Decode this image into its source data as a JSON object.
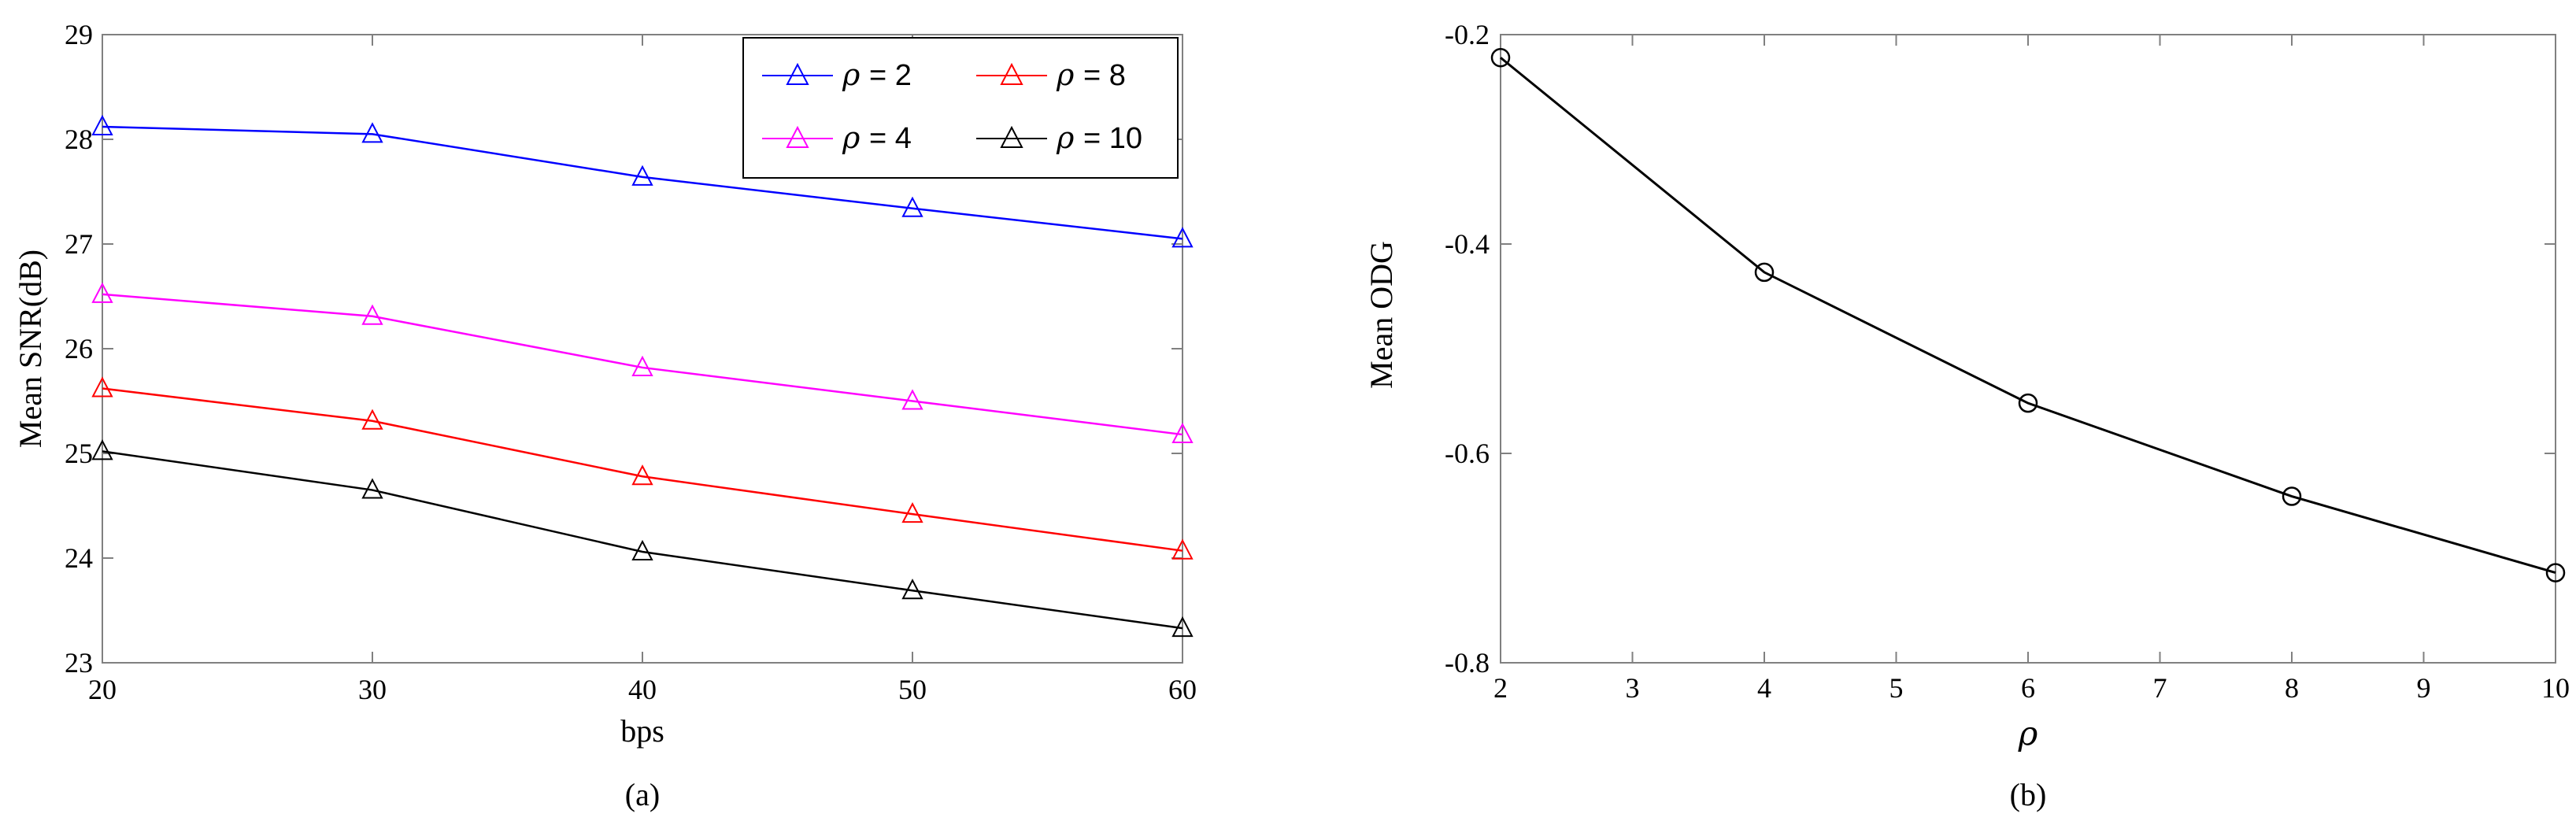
{
  "chart_data": [
    {
      "type": "line",
      "caption": "(a)",
      "xlabel": "bps",
      "ylabel": "Mean SNR(dB)",
      "xlim": [
        20,
        60
      ],
      "ylim": [
        23,
        29
      ],
      "xticks": [
        "20",
        "30",
        "40",
        "50",
        "60"
      ],
      "yticks": [
        "23",
        "24",
        "25",
        "26",
        "27",
        "28",
        "29"
      ],
      "x": [
        20,
        30,
        40,
        50,
        60
      ],
      "marker": "triangle",
      "grid": false,
      "legend_placement": "top-right",
      "series": [
        {
          "name": "ρ = 2",
          "legend_symbol": "ρ",
          "legend_text": "= 2",
          "color": "#0000ff",
          "values": [
            28.12,
            28.05,
            27.64,
            27.34,
            27.05
          ]
        },
        {
          "name": "ρ = 4",
          "legend_symbol": "ρ",
          "legend_text": "= 4",
          "color": "#ff00ff",
          "values": [
            26.52,
            26.31,
            25.82,
            25.5,
            25.18
          ]
        },
        {
          "name": "ρ = 8",
          "legend_symbol": "ρ",
          "legend_text": "= 8",
          "color": "#ff0000",
          "values": [
            25.62,
            25.31,
            24.78,
            24.42,
            24.07
          ]
        },
        {
          "name": "ρ = 10",
          "legend_symbol": "ρ",
          "legend_text": "= 10",
          "color": "#000000",
          "values": [
            25.02,
            24.65,
            24.06,
            23.69,
            23.33
          ]
        }
      ]
    },
    {
      "type": "line",
      "caption": "(b)",
      "xlabel": "ρ",
      "ylabel": "Mean ODG",
      "xlim": [
        2,
        10
      ],
      "ylim": [
        -0.8,
        -0.2
      ],
      "xticks": [
        "2",
        "3",
        "4",
        "5",
        "6",
        "7",
        "8",
        "9",
        "10"
      ],
      "yticks": [
        "-0.2",
        "-0.4",
        "-0.6",
        "-0.8"
      ],
      "marker": "circle",
      "grid": false,
      "series": [
        {
          "color": "#000000",
          "x": [
            2,
            4,
            6,
            8,
            10
          ],
          "values": [
            -0.222,
            -0.427,
            -0.552,
            -0.641,
            -0.714
          ]
        }
      ]
    }
  ]
}
